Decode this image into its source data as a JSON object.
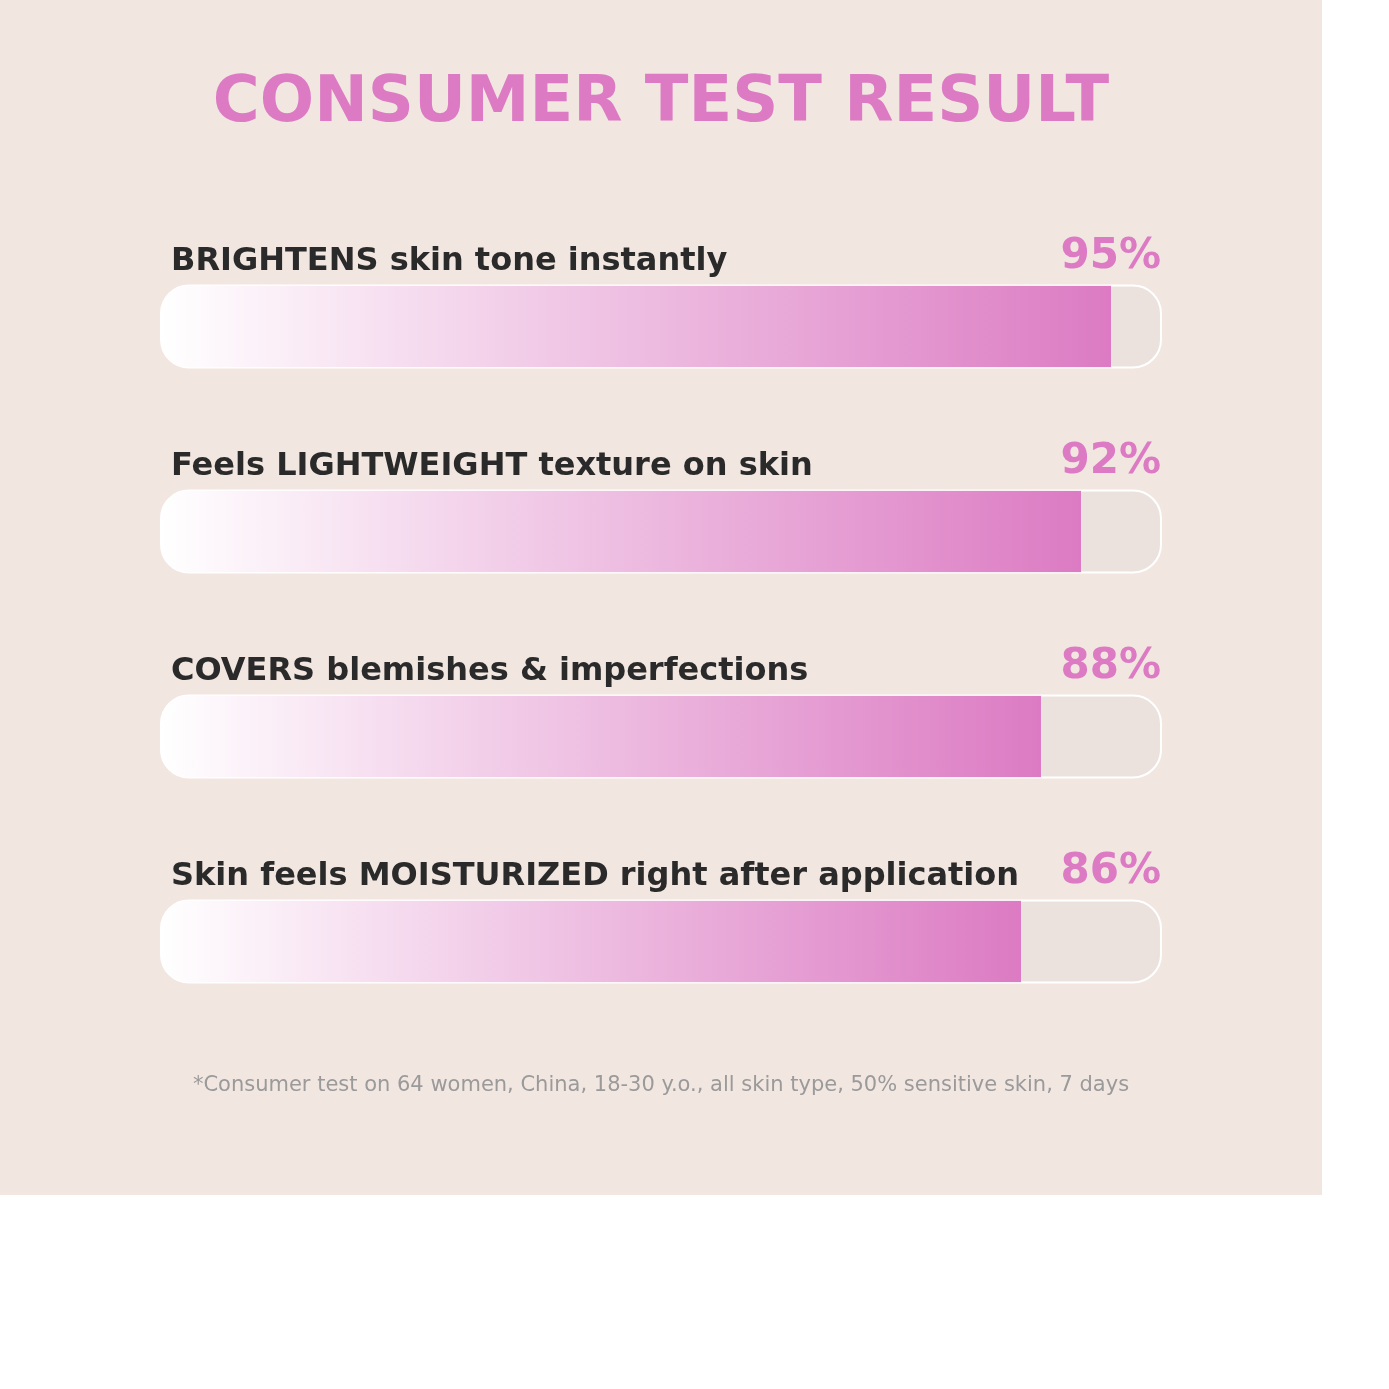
{
  "chart_data": {
    "type": "bar",
    "orientation": "horizontal",
    "title": "CONSUMER TEST RESULT",
    "categories": [
      "BRIGHTENS skin tone instantly",
      "Feels LIGHTWEIGHT texture on skin",
      "COVERS blemishes & imperfections",
      "Skin feels MOISTURIZED right after application"
    ],
    "values": [
      95,
      92,
      88,
      86
    ],
    "value_labels": [
      "95%",
      "92%",
      "88%",
      "86%"
    ],
    "color": "#dc7bc3",
    "xlim": [
      0,
      100
    ],
    "tick_labels": false,
    "annotations": [
      "*Consumer test on 64 women, China, 18-30 y.o., all skin type, 50% sensitive skin, 7 days"
    ]
  }
}
